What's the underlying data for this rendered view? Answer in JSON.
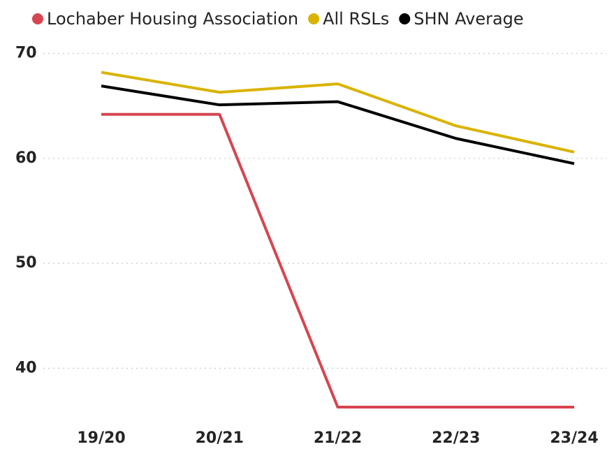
{
  "chart_data": {
    "type": "line",
    "categories": [
      "19/20",
      "20/21",
      "21/22",
      "22/23",
      "23/24"
    ],
    "series": [
      {
        "name": "Lochaber Housing Association",
        "color": "#d64550",
        "values": [
          64.2,
          64.2,
          36.3,
          36.3,
          36.3
        ]
      },
      {
        "name": "All RSLs",
        "color": "#d9b300",
        "values": [
          68.2,
          66.3,
          67.1,
          63.1,
          60.6
        ]
      },
      {
        "name": "SHN Average",
        "color": "#000000",
        "values": [
          66.9,
          65.1,
          65.4,
          61.9,
          59.5
        ]
      }
    ],
    "ylim": [
      35.5,
      71.1
    ],
    "yticks": [
      40,
      50,
      60,
      70
    ],
    "grid": true,
    "legend": "top"
  }
}
